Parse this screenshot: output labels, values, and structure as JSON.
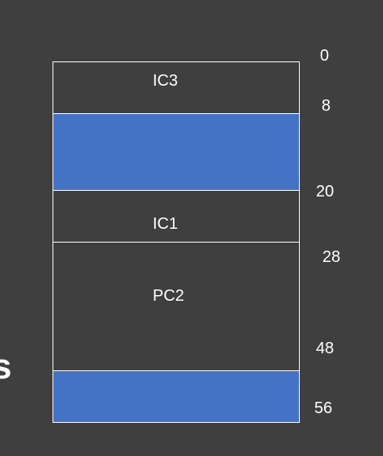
{
  "memory_map": {
    "segments": [
      {
        "label": "IC3",
        "start": 0,
        "end": 8,
        "filled": false
      },
      {
        "label": "",
        "start": 8,
        "end": 20,
        "filled": true
      },
      {
        "label": "IC1",
        "start": 20,
        "end": 28,
        "filled": false
      },
      {
        "label": "PC2",
        "start": 28,
        "end": 48,
        "filled": false
      },
      {
        "label": "",
        "start": 48,
        "end": 56,
        "filled": true
      }
    ],
    "addresses": [
      "0",
      "8",
      "20",
      "28",
      "48",
      "56"
    ],
    "colors": {
      "background": "#3f3f3f",
      "filled": "#4472c4",
      "border": "#ffffff",
      "text": "#ffffff"
    }
  },
  "partial_text": "s"
}
